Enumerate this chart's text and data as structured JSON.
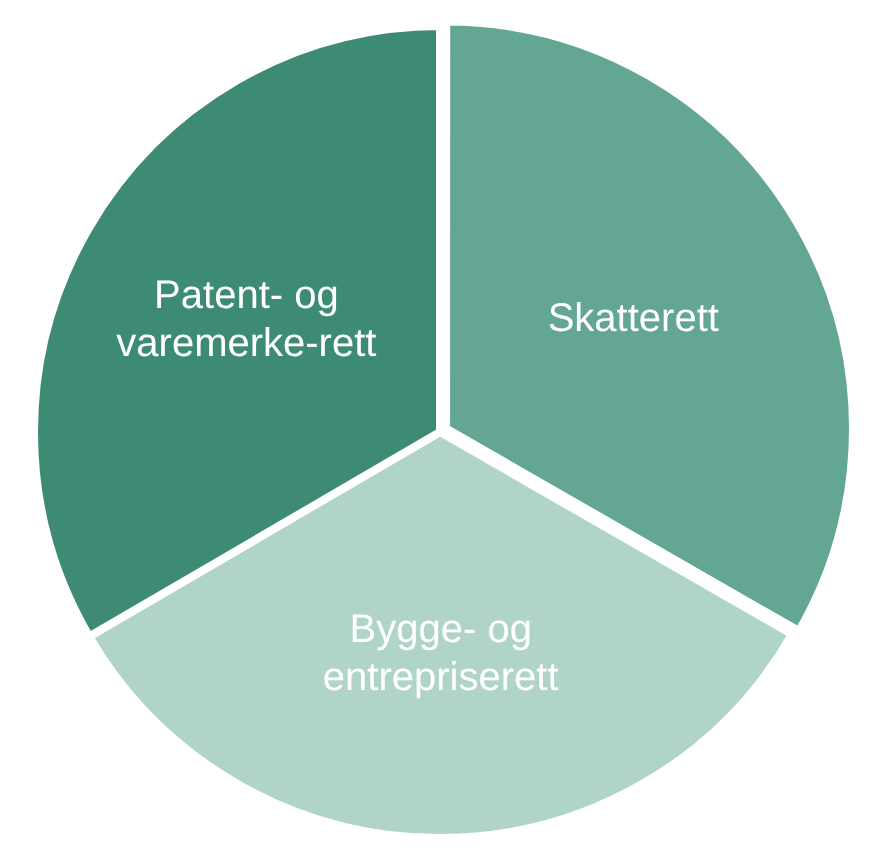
{
  "chart_data": {
    "type": "pie",
    "categories": [
      "Skatterett",
      "Bygge- og entrepriserett",
      "Patent- og varemerke-rett"
    ],
    "values": [
      33.3,
      33.3,
      33.4
    ],
    "colors": [
      "#62a693",
      "#b1d4c9",
      "#3d8b74"
    ]
  }
}
